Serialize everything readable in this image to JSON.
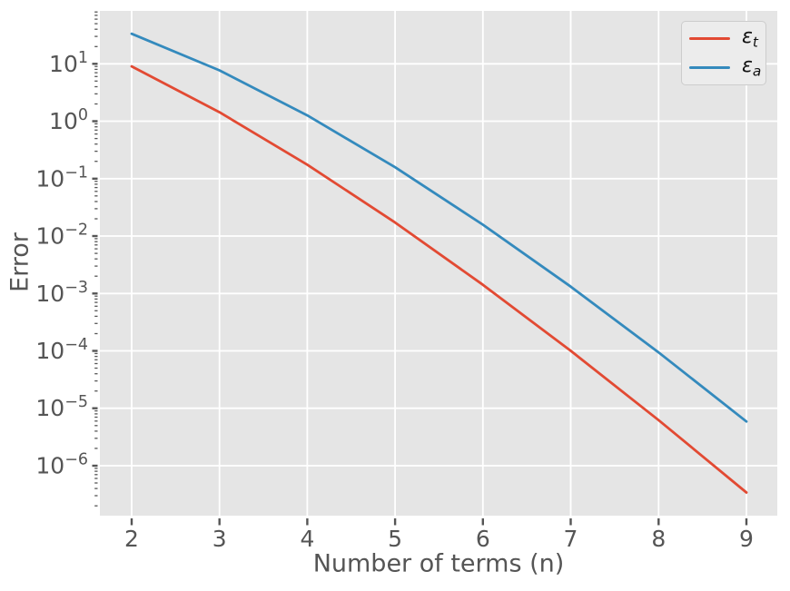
{
  "chart_data": {
    "type": "line",
    "title": "",
    "xlabel": "Number of terms (n)",
    "ylabel": "Error",
    "yscale": "log",
    "grid": true,
    "legend_position": "upper right",
    "x": [
      2,
      3,
      4,
      5,
      6,
      7,
      8,
      9
    ],
    "series": [
      {
        "name": "epsilon_t",
        "label_base": "ε",
        "label_sub": "t",
        "color": "#E24A33",
        "values": [
          9.0204,
          1.4388,
          0.17516,
          0.017212,
          0.0014165,
          0.00010023,
          6.2205e-06,
          3.4124e-07
        ]
      },
      {
        "name": "epsilon_a",
        "label_base": "ε",
        "label_sub": "a",
        "color": "#348ABD",
        "values": [
          33.333,
          7.6923,
          1.2658,
          0.15798,
          0.015795,
          0.0013163,
          9.4014e-05,
          5.8755e-06
        ]
      }
    ],
    "xticks": [
      2,
      3,
      4,
      5,
      6,
      7,
      8,
      9
    ],
    "ytick_exponents": [
      1,
      0,
      -1,
      -2,
      -3,
      -4,
      -5,
      -6
    ],
    "xlim": [
      1.638,
      9.352
    ],
    "ylim_log10": [
      -6.87,
      1.922
    ]
  },
  "style": {
    "plot_bg": "#E5E5E5",
    "grid_color": "#FFFFFF",
    "tick_mark_color": "#555555",
    "tick_label_color": "#555555",
    "axis_label_color": "#555555",
    "legend_bg": "#ECECEC",
    "legend_border": "#CCCCCC",
    "legend_text_color": "#111111"
  }
}
